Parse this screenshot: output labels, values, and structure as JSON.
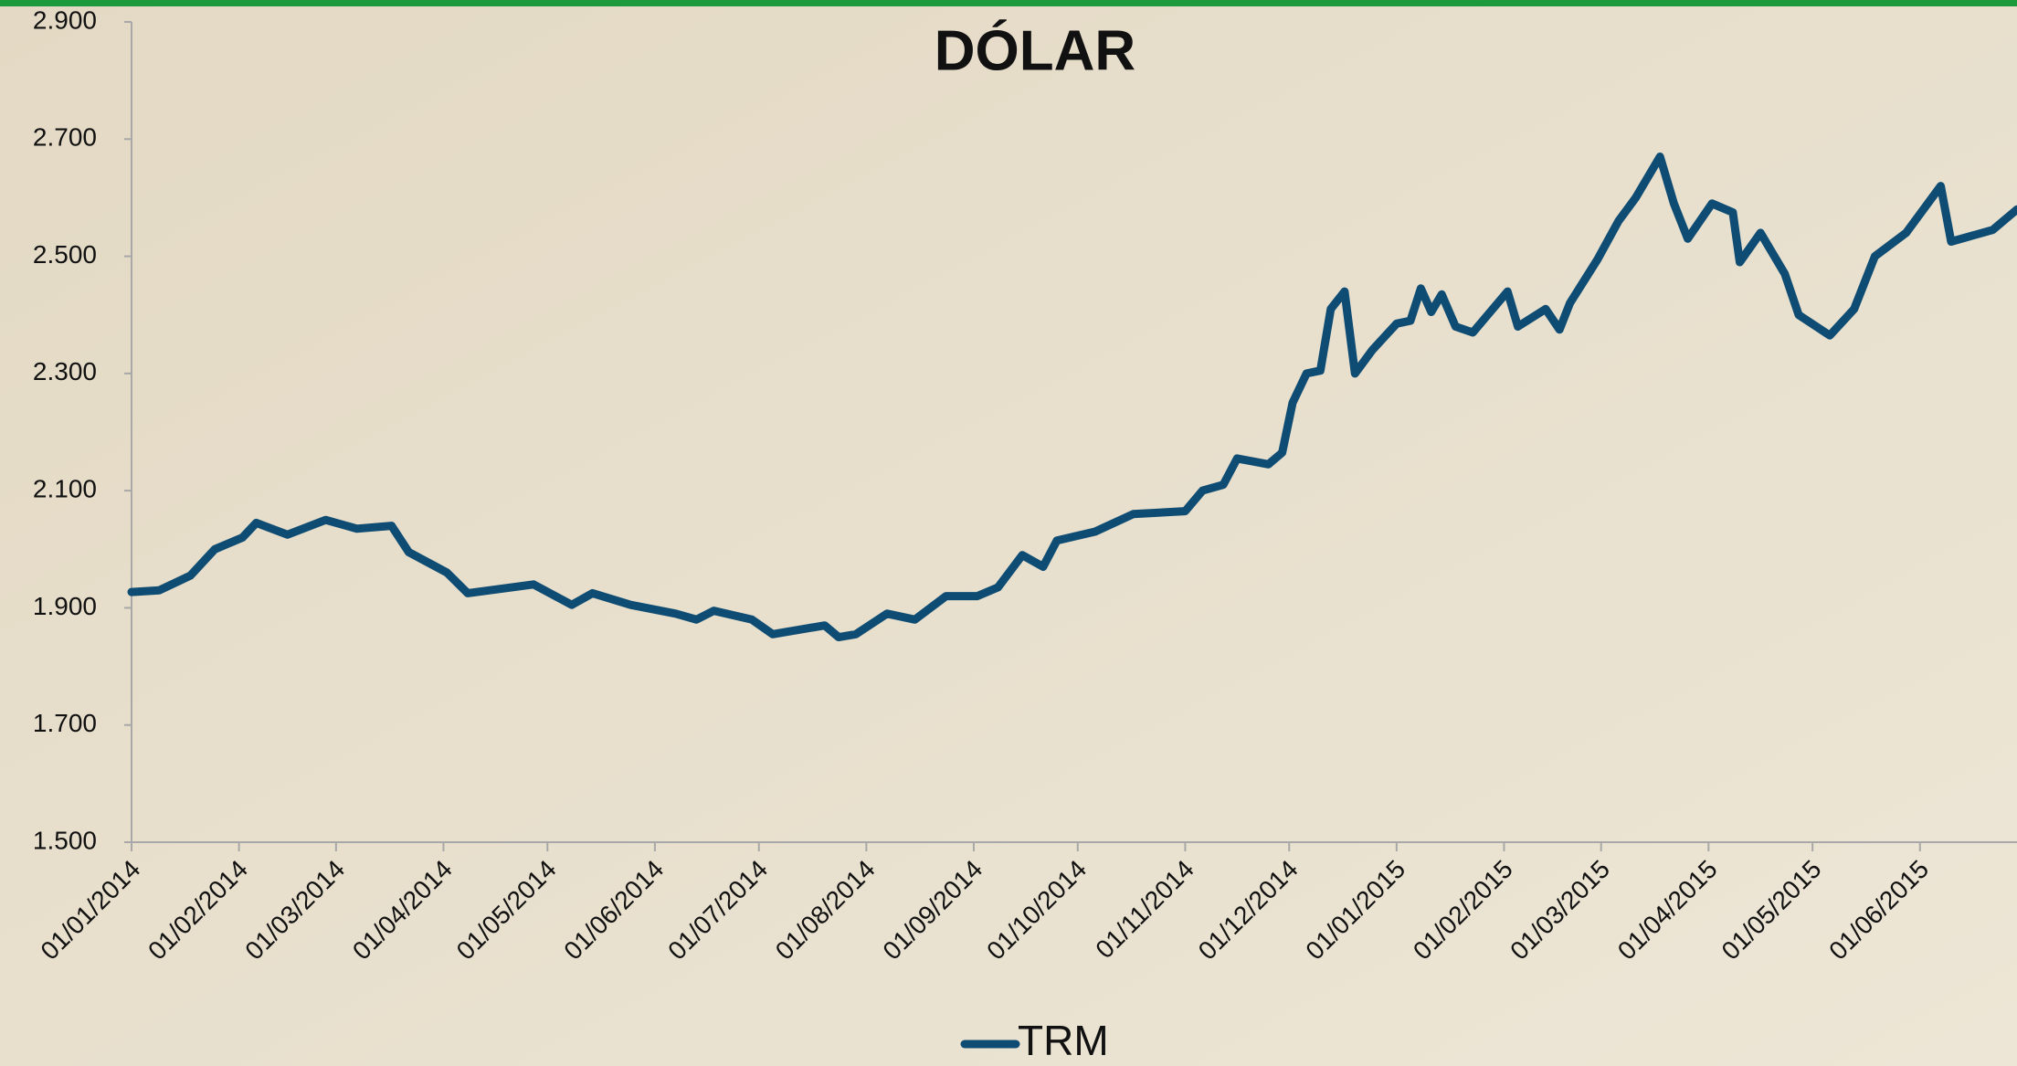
{
  "chart_data": {
    "type": "line",
    "title": "DÓLAR",
    "x": [
      "01/01/2014",
      "09/01/2014",
      "18/01/2014",
      "25/01/2014",
      "02/02/2014",
      "06/02/2014",
      "15/02/2014",
      "26/02/2014",
      "07/03/2014",
      "17/03/2014",
      "22/03/2014",
      "02/04/2014",
      "08/04/2014",
      "27/04/2014",
      "08/05/2014",
      "14/05/2014",
      "25/05/2014",
      "07/06/2014",
      "13/06/2014",
      "18/06/2014",
      "29/06/2014",
      "05/07/2014",
      "20/07/2014",
      "24/07/2014",
      "29/07/2014",
      "07/08/2014",
      "15/08/2014",
      "24/08/2014",
      "02/09/2014",
      "08/09/2014",
      "15/09/2014",
      "21/09/2014",
      "25/09/2014",
      "06/10/2014",
      "17/10/2014",
      "01/11/2014",
      "06/11/2014",
      "12/11/2014",
      "16/11/2014",
      "25/11/2014",
      "29/11/2014",
      "02/12/2014",
      "06/12/2014",
      "10/12/2014",
      "13/12/2014",
      "17/12/2014",
      "20/12/2014",
      "25/12/2014",
      "01/01/2015",
      "05/01/2015",
      "08/01/2015",
      "11/01/2015",
      "14/01/2015",
      "18/01/2015",
      "23/01/2015",
      "02/02/2015",
      "05/02/2015",
      "13/02/2015",
      "17/02/2015",
      "20/02/2015",
      "28/02/2015",
      "06/03/2015",
      "11/03/2015",
      "18/03/2015",
      "22/03/2015",
      "26/03/2015",
      "02/04/2015",
      "08/04/2015",
      "10/04/2015",
      "16/04/2015",
      "23/04/2015",
      "27/04/2015",
      "06/05/2015",
      "13/05/2015",
      "19/05/2015",
      "28/05/2015",
      "07/06/2015",
      "10/06/2015",
      "22/06/2015",
      "29/06/2015"
    ],
    "series": [
      {
        "name": "TRM",
        "color": "#0f4c73",
        "values": [
          1927,
          1930,
          1955,
          2000,
          2020,
          2045,
          2025,
          2050,
          2035,
          2040,
          1995,
          1960,
          1925,
          1940,
          1905,
          1925,
          1905,
          1890,
          1880,
          1895,
          1880,
          1855,
          1870,
          1850,
          1855,
          1890,
          1880,
          1920,
          1920,
          1935,
          1990,
          1970,
          2015,
          2030,
          2060,
          2065,
          2100,
          2110,
          2155,
          2145,
          2165,
          2250,
          2300,
          2305,
          2410,
          2440,
          2300,
          2340,
          2385,
          2390,
          2445,
          2405,
          2435,
          2380,
          2370,
          2440,
          2380,
          2410,
          2375,
          2420,
          2495,
          2560,
          2600,
          2670,
          2590,
          2530,
          2590,
          2575,
          2490,
          2540,
          2470,
          2400,
          2365,
          2410,
          2500,
          2540,
          2620,
          2525,
          2545,
          2580
        ]
      }
    ],
    "xlim": [
      "01/01/2014",
      "29/06/2015"
    ],
    "xticks": [
      "01/01/2014",
      "01/02/2014",
      "01/03/2014",
      "01/04/2014",
      "01/05/2014",
      "01/06/2014",
      "01/07/2014",
      "01/08/2014",
      "01/09/2014",
      "01/10/2014",
      "01/11/2014",
      "01/12/2014",
      "01/01/2015",
      "01/02/2015",
      "01/03/2015",
      "01/04/2015",
      "01/05/2015",
      "01/06/2015"
    ],
    "ylim": [
      1500,
      2900
    ],
    "yticks": [
      {
        "value": 1500,
        "label": "1.500"
      },
      {
        "value": 1700,
        "label": "1.700"
      },
      {
        "value": 1900,
        "label": "1.900"
      },
      {
        "value": 2100,
        "label": "2.100"
      },
      {
        "value": 2300,
        "label": "2.300"
      },
      {
        "value": 2500,
        "label": "2.500"
      },
      {
        "value": 2700,
        "label": "2.700"
      },
      {
        "value": 2900,
        "label": "2.900"
      }
    ],
    "legend": "bottom"
  }
}
